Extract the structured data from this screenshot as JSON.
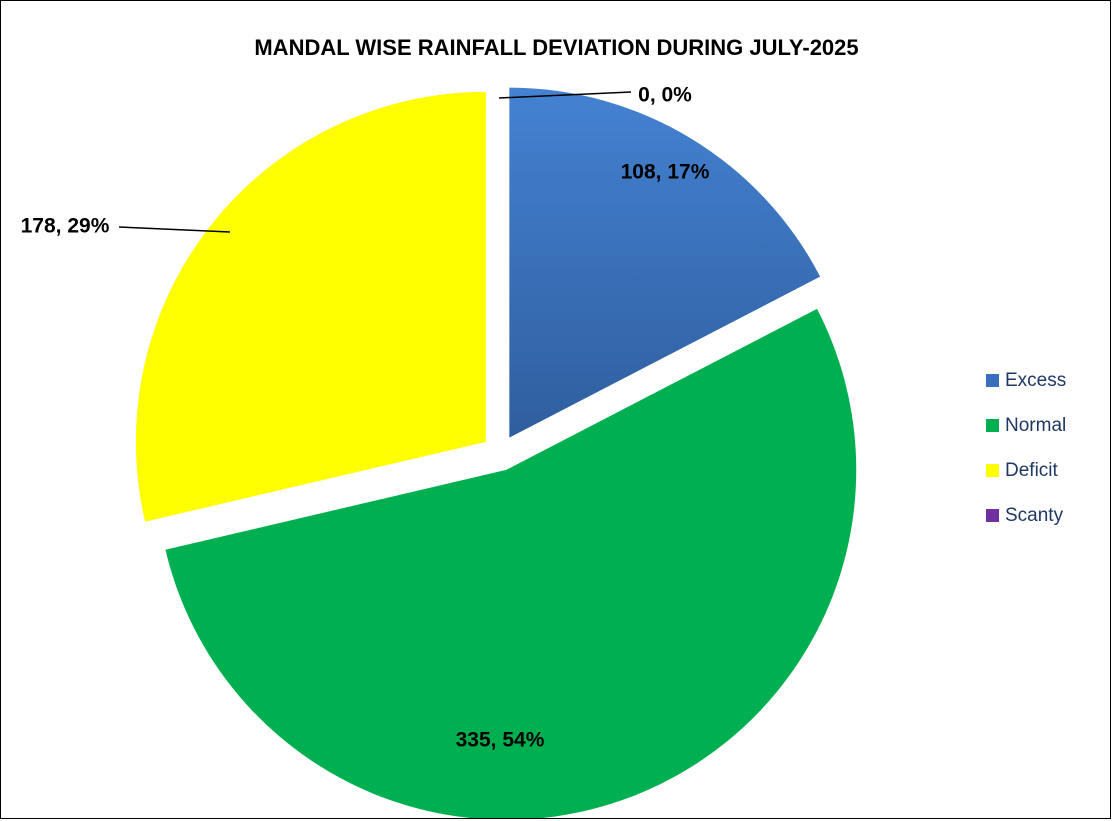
{
  "chart_data": {
    "type": "pie",
    "title": "MANDAL WISE RAINFALL DEVIATION DURING JULY-2025",
    "categories": [
      "Excess",
      "Normal",
      "Deficit",
      "Scanty"
    ],
    "values": [
      108,
      335,
      178,
      0
    ],
    "percent_labels": [
      "17%",
      "54%",
      "29%",
      "0%"
    ],
    "data_labels": [
      "108, 17%",
      "335, 54%",
      "178, 29%",
      "0, 0%"
    ],
    "colors": [
      "#3a6fbf",
      "#00b050",
      "#ffff00",
      "#7030a0"
    ],
    "exploded": true,
    "legend_position": "right"
  }
}
